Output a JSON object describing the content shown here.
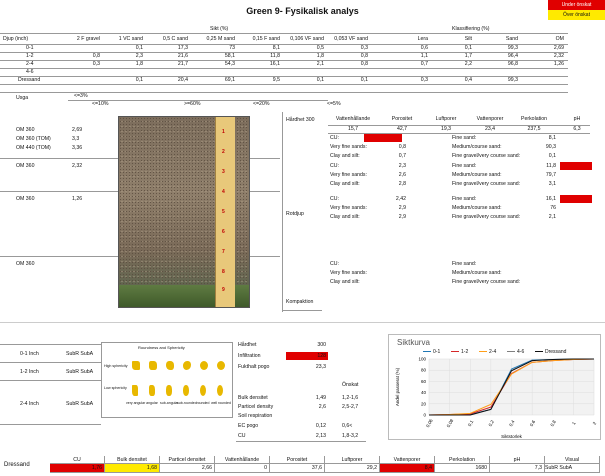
{
  "title": "Green 9- Fysikalisk analys",
  "legend": {
    "red": "Under önskat",
    "yellow": "Över önskat"
  },
  "top_table": {
    "sikt_header": "Sikt (%)",
    "klass_header": "Klassifiering (%)",
    "depth_header": "Djup (inch)",
    "columns": [
      "2 F gravel",
      "1 VC sand",
      "0,5 C sand",
      "0,25 M sand",
      "0,15 F sand",
      "0,106 VF sand",
      "0,053 VF sand",
      "Lera",
      "Silt",
      "Sand",
      "OM"
    ],
    "rows": [
      {
        "label": "0-1",
        "values": [
          "",
          "0,1",
          "17,3",
          "73",
          "8,1",
          "0,5",
          "0,3",
          "0,6",
          "0,1",
          "99,3",
          "2,69"
        ]
      },
      {
        "label": "1-2",
        "values": [
          "0,8",
          "2,3",
          "21,6",
          "58,1",
          "11,8",
          "1,8",
          "0,8",
          "1,1",
          "1,7",
          "96,4",
          "2,32"
        ]
      },
      {
        "label": "2-4",
        "values": [
          "0,3",
          "1,8",
          "21,7",
          "54,3",
          "16,1",
          "2,1",
          "0,8",
          "0,7",
          "2,2",
          "96,8",
          "1,26"
        ]
      },
      {
        "label": "4-6",
        "values": [
          "",
          "",
          "",
          "",
          "",
          "",
          "",
          "",
          "",
          "",
          ""
        ]
      },
      {
        "label": "Dressand",
        "values": [
          "",
          "0,1",
          "20,4",
          "69,1",
          "9,5",
          "0,1",
          "0,1",
          "0,3",
          "0,4",
          "99,3",
          ""
        ]
      }
    ],
    "usga_label": "Usga",
    "usga_a": "<=3%",
    "usga_b": "<=10%",
    "usga_c": ">=60%",
    "usga_d": "<=20%",
    "usga_e": "<=5%"
  },
  "om_left": [
    {
      "label": "OM 360",
      "value": "2,69"
    },
    {
      "label": "OM 360 (TOM)",
      "value": "3,3"
    },
    {
      "label": "OM 440 (TOM)",
      "value": "3,36"
    },
    {
      "label": "OM 360",
      "value": "2,32"
    },
    {
      "label": "OM 360",
      "value": "1,26"
    },
    {
      "label": "OM 360",
      "value": ""
    }
  ],
  "ruler_marks": [
    "1",
    "2",
    "3",
    "4",
    "5",
    "6",
    "7",
    "8",
    "9"
  ],
  "hardhet_label": "Hårdhet 300",
  "rotdjup_label": "Rotdjup",
  "kompaktion_label": "Kompaktion",
  "props_header": {
    "cols": [
      "Vattenhållande",
      "Porositet",
      "Luftporer",
      "Vattenporer",
      "Perkolation",
      "pH"
    ],
    "values": [
      "15,7",
      "42,7",
      "19,3",
      "23,4",
      "237,5",
      "6,3"
    ]
  },
  "layer_blocks": [
    {
      "cu": "",
      "vfs": "0,8",
      "clay": "0,7",
      "fs": "8,1",
      "mcs": "90,3",
      "fg": "0,1"
    },
    {
      "cu": "2,3",
      "vfs": "2,6",
      "clay": "2,8",
      "fs": "11,8",
      "mcs": "79,7",
      "fg": "3,1"
    },
    {
      "cu": "2,42",
      "vfs": "2,9",
      "clay": "2,9",
      "fs": "16,1",
      "mcs": "76",
      "fg": "2,1"
    },
    {
      "cu": "",
      "vfs": "",
      "clay": "",
      "fs": "",
      "mcs": "",
      "fg": ""
    }
  ],
  "layer_labels": {
    "cu": "CU:",
    "vfs": "Very fine sands:",
    "clay": "Clay and silt:",
    "fs": "Fine sand:",
    "mcs": "Medium/course sand:",
    "fg": "Fine gravel/very course sand:"
  },
  "shape_rows": [
    {
      "label": "0-1 Inch",
      "value": "SubR SubA"
    },
    {
      "label": "1-2 Inch",
      "value": "SubR SubA"
    },
    {
      "label": "2-4 Inch",
      "value": "SubR SubA"
    }
  ],
  "shapes_chart": {
    "title": "Roundness and Sphericity",
    "row1": "High sphericity",
    "row2": "Low sphericity",
    "cols": [
      "very angular",
      "angular",
      "sub-angular",
      "sub-rounded",
      "rounded",
      "well rounded"
    ]
  },
  "mid_props": {
    "hardhet": {
      "label": "Hårdhet",
      "value": "300"
    },
    "infiltration": {
      "label": "Infiltration",
      "value": "128"
    },
    "fukthalt": {
      "label": "Fukthalt pogo",
      "value": "23,3"
    },
    "onskat": "Önskat",
    "bulk": {
      "label": "Bulk densitet",
      "value": "1,49",
      "target": "1,2-1,6"
    },
    "particle": {
      "label": "Particel density",
      "value": "2,6",
      "target": "2,5-2,7"
    },
    "soil_resp": {
      "label": "Soil respiration",
      "value": "",
      "target": ""
    },
    "ec": {
      "label": "EC pogo",
      "value": "0,12",
      "target": "0,6<"
    },
    "cu": {
      "label": "CU",
      "value": "2,13",
      "target": "1,8-3,2"
    }
  },
  "chart_data": {
    "type": "line",
    "title": "Siktkurva",
    "xlabel": "Siktstorlek",
    "ylabel": "Andel passerat (%)",
    "x_ticks": [
      "0,06",
      "0,08",
      "0,1",
      "0,2",
      "0,4",
      "0,6",
      "0,8",
      "1",
      "2"
    ],
    "y_ticks": [
      "0",
      "20",
      "40",
      "60",
      "80",
      "100"
    ],
    "ylim": [
      0,
      100
    ],
    "legend_position": "top",
    "series": [
      {
        "name": "0-1",
        "color": "#1f77b4",
        "values": [
          0,
          0,
          1,
          10,
          82,
          98,
          99,
          100,
          100
        ]
      },
      {
        "name": "1-2",
        "color": "#d62728",
        "values": [
          0,
          1,
          2,
          14,
          74,
          94,
          97,
          99,
          100
        ]
      },
      {
        "name": "2-4",
        "color": "#ff9f1a",
        "values": [
          0,
          1,
          3,
          19,
          73,
          94,
          97,
          99,
          100
        ]
      },
      {
        "name": "4-6",
        "color": "#7f7f7f",
        "values": []
      },
      {
        "name": "Dressand",
        "color": "#111111",
        "values": [
          0,
          0,
          0,
          10,
          79,
          97,
          99,
          100,
          100
        ]
      }
    ]
  },
  "bottom_table": {
    "row_label": "Dressand",
    "headers": [
      "CU",
      "Bulk densitet",
      "Particel densitet",
      "Vattenhållande",
      "Porositet",
      "Luftporer",
      "Vattenporer",
      "Perkolation",
      "pH",
      "Visual"
    ],
    "values": [
      "1,76",
      "1,68",
      "2,66",
      "0",
      "37,6",
      "29,2",
      "8,4",
      "1680",
      "7,3",
      "SubR SubA"
    ]
  }
}
